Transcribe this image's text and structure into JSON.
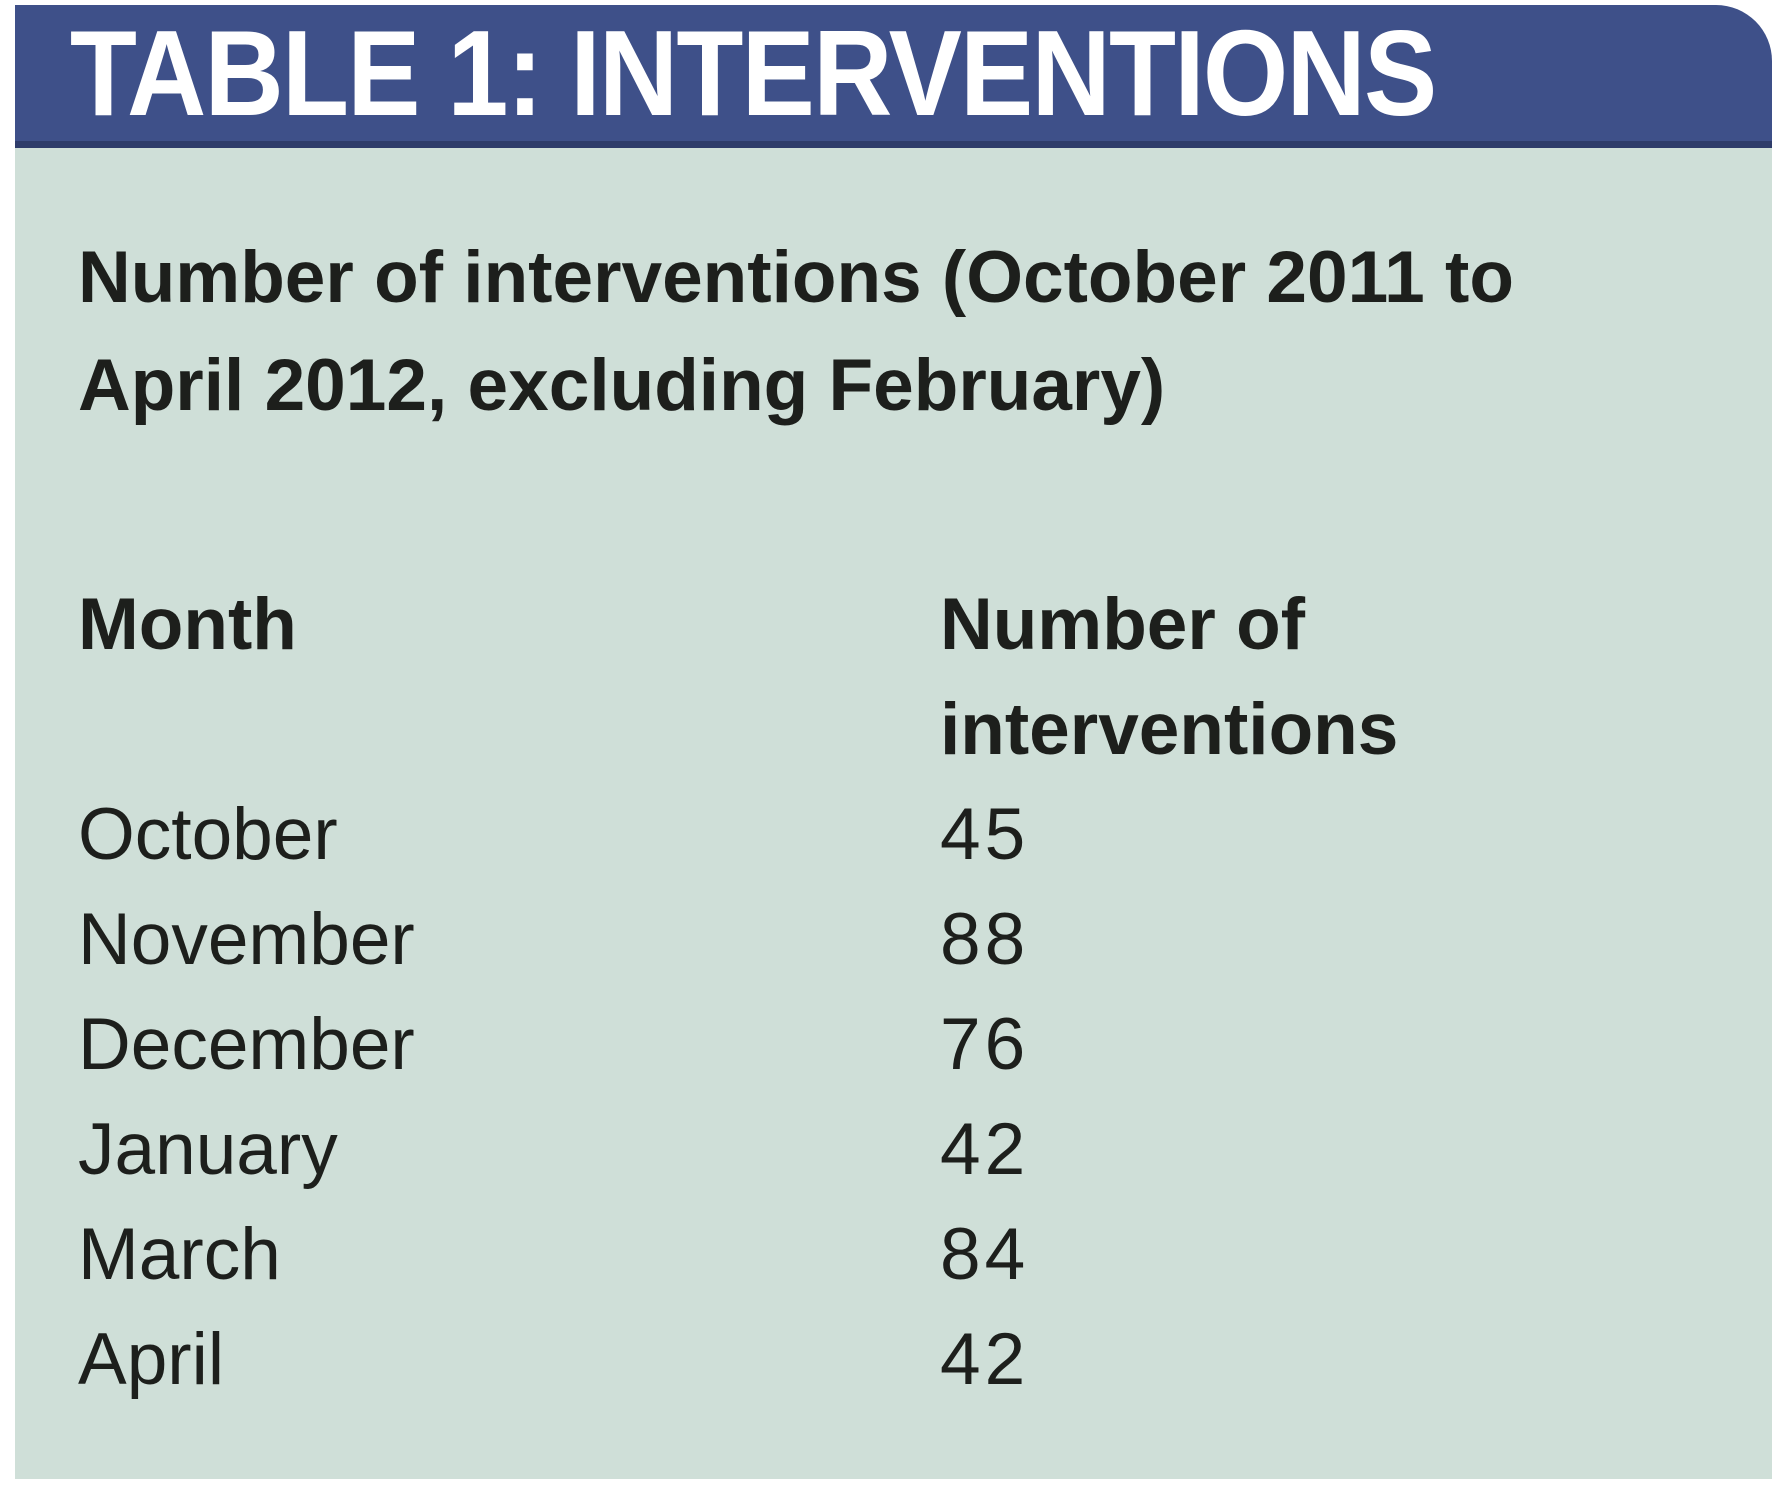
{
  "title_bar": {
    "title": "TABLE 1: INTERVENTIONS"
  },
  "caption": "Number of interventions (October 2011 to April 2012, excluding February)",
  "table": {
    "col1_header": "Month",
    "col2_header": "Number of interventions",
    "rows": [
      {
        "month": "October",
        "count": "45"
      },
      {
        "month": "November",
        "count": "88"
      },
      {
        "month": "December",
        "count": "76"
      },
      {
        "month": "January",
        "count": "42"
      },
      {
        "month": "March",
        "count": "84"
      },
      {
        "month": "April",
        "count": "42"
      }
    ]
  },
  "colors": {
    "title_bar_bg": "#3e5089",
    "title_bar_edge": "#2e3c6a",
    "panel_bg": "#cfdfd8",
    "text": "#1d1f1c",
    "title_text": "#ffffff"
  },
  "chart_data": {
    "type": "table",
    "title": "TABLE 1: INTERVENTIONS",
    "subtitle": "Number of interventions (October 2011 to April 2012, excluding February)",
    "columns": [
      "Month",
      "Number of interventions"
    ],
    "categories": [
      "October",
      "November",
      "December",
      "January",
      "March",
      "April"
    ],
    "values": [
      45,
      88,
      76,
      42,
      84,
      42
    ]
  }
}
